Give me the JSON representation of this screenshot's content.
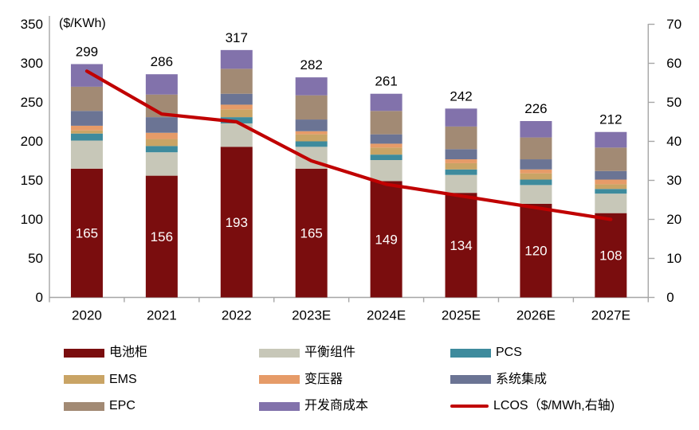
{
  "chart_data": {
    "type": "bar",
    "subtype": "stacked-bar-with-line-dual-axis",
    "ylabel": "($/KWh)",
    "categories": [
      "2020",
      "2021",
      "2022",
      "2023E",
      "2024E",
      "2025E",
      "2026E",
      "2027E"
    ],
    "series": [
      {
        "name": "电池柜",
        "color": "#7a0d0e",
        "values": [
          165,
          156,
          193,
          165,
          149,
          134,
          120,
          108
        ]
      },
      {
        "name": "平衡组件",
        "color": "#c7c7b8",
        "values": [
          36,
          30,
          30,
          28,
          27,
          23,
          24,
          25
        ]
      },
      {
        "name": "PCS",
        "color": "#3e8b9d",
        "values": [
          9,
          8,
          8,
          7,
          7,
          7,
          7,
          6
        ]
      },
      {
        "name": "EMS",
        "color": "#c9a465",
        "values": [
          4,
          9,
          10,
          9,
          9,
          8,
          8,
          6
        ]
      },
      {
        "name": "变压器",
        "color": "#e69b68",
        "values": [
          6,
          8,
          6,
          4,
          5,
          5,
          5,
          6
        ]
      },
      {
        "name": "系统集成",
        "color": "#6b7494",
        "values": [
          19,
          20,
          14,
          15,
          12,
          13,
          13,
          11
        ]
      },
      {
        "name": "EPC",
        "color": "#a28a74",
        "values": [
          31,
          29,
          32,
          31,
          30,
          29,
          28,
          30
        ]
      },
      {
        "name": "开发商成本",
        "color": "#8272ab",
        "values": [
          29,
          26,
          24,
          23,
          22,
          23,
          21,
          20
        ]
      }
    ],
    "bar_total_labels": [
      "299",
      "286",
      "317",
      "282",
      "261",
      "242",
      "226",
      "212"
    ],
    "bar_inner_labels": [
      "165",
      "156",
      "193",
      "165",
      "149",
      "134",
      "120",
      "108"
    ],
    "line": {
      "name": "LCOS（$/MWh,右轴)",
      "color": "#c00000",
      "axis": "right",
      "values": [
        58,
        47,
        45,
        35,
        29,
        26,
        23,
        20
      ]
    },
    "left_axis": {
      "min": 0,
      "max": 350,
      "step": 50
    },
    "right_axis": {
      "min": 0,
      "max": 70,
      "step": 10
    },
    "legend_position": "bottom",
    "grid": false
  },
  "colors": {
    "axis": "#a6a6a6",
    "tick_text": "#000000",
    "bar_inner_label": "#ffffff",
    "total_label": "#000000"
  }
}
